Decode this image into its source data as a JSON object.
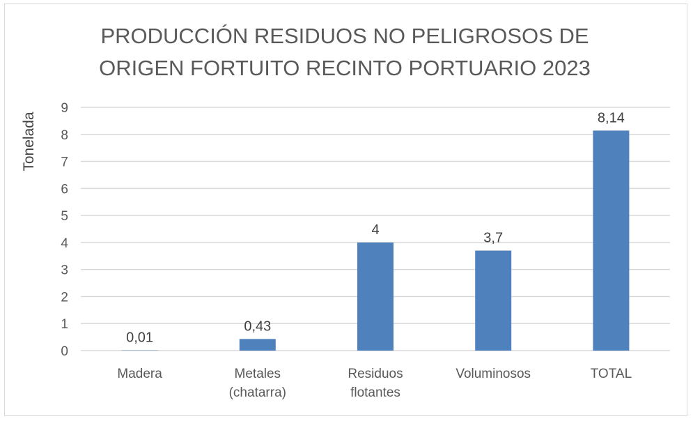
{
  "chart_data": {
    "type": "bar",
    "title_lines": [
      "PRODUCCIÓN RESIDUOS NO PELIGROSOS DE",
      "ORIGEN FORTUITO RECINTO PORTUARIO 2023"
    ],
    "ylabel": "Tonelada",
    "xlabel": "",
    "categories": [
      [
        "Madera"
      ],
      [
        "Metales",
        "(chatarra)"
      ],
      [
        "Residuos",
        "flotantes"
      ],
      [
        "Voluminosos"
      ],
      [
        "TOTAL"
      ]
    ],
    "values": [
      0.01,
      0.43,
      4,
      3.7,
      8.14
    ],
    "data_labels": [
      "0,01",
      "0,43",
      "4",
      "3,7",
      "8,14"
    ],
    "ylim": [
      0,
      9
    ],
    "yticks": [
      0,
      1,
      2,
      3,
      4,
      5,
      6,
      7,
      8,
      9
    ],
    "grid": true,
    "legend": "none",
    "bar_color": "#4f81bd"
  }
}
